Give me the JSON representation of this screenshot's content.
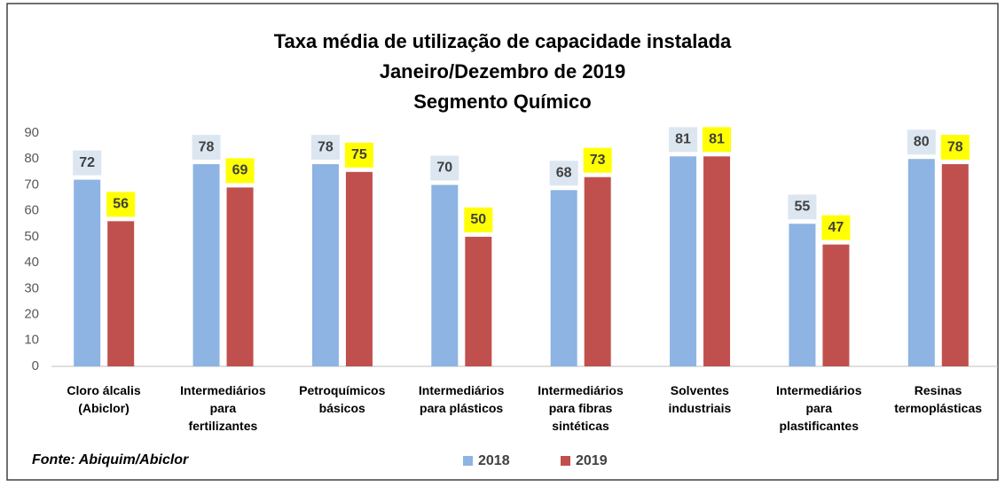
{
  "chart_data": {
    "type": "bar",
    "title": "Taxa média de utilização de capacidade instalada\nJaneiro/Dezembro de 2019\nSegmento Químico",
    "source": "Fonte: Abiquim/Abiclor",
    "categories": [
      "Cloro álcalis\n(Abiclor)",
      "Intermediários\npara\nfertilizantes",
      "Petroquímicos\nbásicos",
      "Intermediários\npara plásticos",
      "Intermediários\npara fibras\nsintéticas",
      "Solventes\nindustriais",
      "Intermediários\npara\nplastificantes",
      "Resinas\ntermoplásticas"
    ],
    "series": [
      {
        "name": "2018",
        "color": "#8db4e2",
        "label_box": "#dce6f1",
        "values": [
          72,
          78,
          78,
          70,
          68,
          81,
          55,
          80
        ]
      },
      {
        "name": "2019",
        "color": "#c0504d",
        "label_box": "#ffff00",
        "values": [
          56,
          69,
          75,
          50,
          73,
          81,
          47,
          78
        ]
      }
    ],
    "ylim": [
      0,
      90
    ],
    "yticks": [
      0,
      10,
      20,
      30,
      40,
      50,
      60,
      70,
      80,
      90
    ],
    "grid": false
  }
}
